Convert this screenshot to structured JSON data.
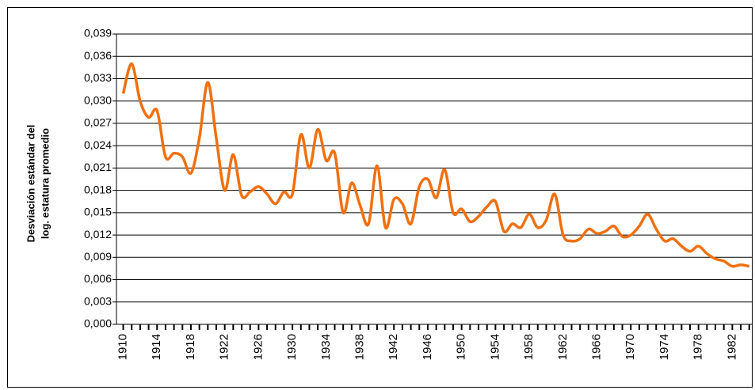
{
  "chart_data": {
    "type": "line",
    "y_label": [
      "Desviación estándar del",
      "log. estatura promedio"
    ],
    "x": [
      1910,
      1911,
      1912,
      1913,
      1914,
      1915,
      1916,
      1917,
      1918,
      1919,
      1920,
      1921,
      1922,
      1923,
      1924,
      1925,
      1926,
      1927,
      1928,
      1929,
      1930,
      1931,
      1932,
      1933,
      1934,
      1935,
      1936,
      1937,
      1938,
      1939,
      1940,
      1941,
      1942,
      1943,
      1944,
      1945,
      1946,
      1947,
      1948,
      1949,
      1950,
      1951,
      1952,
      1953,
      1954,
      1955,
      1956,
      1957,
      1958,
      1959,
      1960,
      1961,
      1962,
      1963,
      1964,
      1965,
      1966,
      1967,
      1968,
      1969,
      1970,
      1971,
      1972,
      1973,
      1974,
      1975,
      1976,
      1977,
      1978,
      1979,
      1980,
      1981,
      1982,
      1983,
      1984
    ],
    "series": [
      {
        "color": "#f07010",
        "values": [
          0.031,
          0.035,
          0.03,
          0.0278,
          0.0287,
          0.0225,
          0.023,
          0.0225,
          0.0203,
          0.025,
          0.0325,
          0.025,
          0.018,
          0.0228,
          0.0173,
          0.0178,
          0.0185,
          0.0175,
          0.0162,
          0.0178,
          0.0175,
          0.0255,
          0.021,
          0.0262,
          0.022,
          0.023,
          0.015,
          0.019,
          0.016,
          0.0135,
          0.0213,
          0.013,
          0.0168,
          0.0162,
          0.0135,
          0.0185,
          0.0195,
          0.017,
          0.0208,
          0.015,
          0.0155,
          0.0138,
          0.0145,
          0.0158,
          0.0165,
          0.0125,
          0.0135,
          0.013,
          0.0148,
          0.013,
          0.014,
          0.0175,
          0.012,
          0.0112,
          0.0115,
          0.0128,
          0.0122,
          0.0125,
          0.0132,
          0.0118,
          0.012,
          0.0132,
          0.0148,
          0.0128,
          0.0112,
          0.0115,
          0.0105,
          0.0098,
          0.0105,
          0.0095,
          0.0088,
          0.0085,
          0.0078,
          0.008,
          0.0078
        ]
      }
    ],
    "xlim": [
      1909.2,
      1984.4
    ],
    "xticks": [
      1910,
      1914,
      1918,
      1922,
      1926,
      1930,
      1934,
      1938,
      1942,
      1946,
      1950,
      1954,
      1958,
      1962,
      1966,
      1970,
      1974,
      1978,
      1982
    ],
    "ylim": [
      0,
      0.039
    ],
    "yticks": [
      {
        "value": 0,
        "label": "0,000"
      },
      {
        "value": 0.003,
        "label": "0,003"
      },
      {
        "value": 0.006,
        "label": "0,006"
      },
      {
        "value": 0.009,
        "label": "0,009"
      },
      {
        "value": 0.012,
        "label": "0,012"
      },
      {
        "value": 0.015,
        "label": "0,015"
      },
      {
        "value": 0.018,
        "label": "0,018"
      },
      {
        "value": 0.021,
        "label": "0,021"
      },
      {
        "value": 0.024,
        "label": "0,024"
      },
      {
        "value": 0.027,
        "label": "0,027"
      },
      {
        "value": 0.03,
        "label": "0,030"
      },
      {
        "value": 0.033,
        "label": "0,033"
      },
      {
        "value": 0.036,
        "label": "0,036"
      },
      {
        "value": 0.039,
        "label": "0,039"
      }
    ],
    "grid": true
  }
}
